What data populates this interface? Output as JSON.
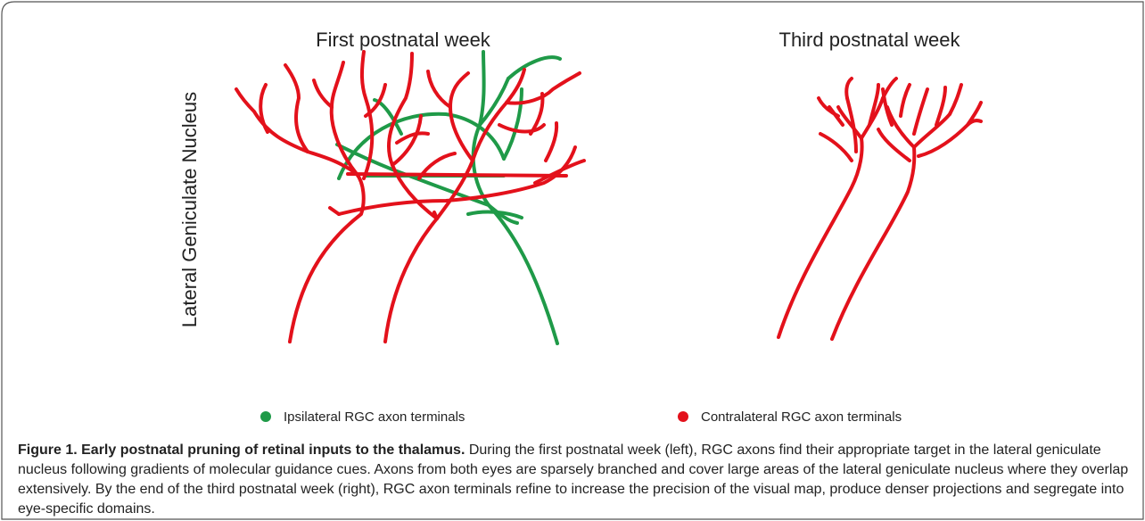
{
  "panels": [
    {
      "title": "First postnatal week"
    },
    {
      "title": "Third postnatal week"
    }
  ],
  "y_label": "Lateral Geniculate Nucleus",
  "legend": [
    {
      "label": "Ipsilateral RGC axon terminals",
      "color": "#1f9a48"
    },
    {
      "label": "Contralateral RGC axon terminals",
      "color": "#e3111b"
    }
  ],
  "caption": {
    "title": "Figure 1. Early postnatal pruning of retinal inputs to the thalamus.",
    "text": "During the first postnatal week (left), RGC axons find their appropriate target in the lateral geniculate nucleus following gradients of molecular guidance cues. Axons from both eyes are sparsely branched and cover large areas of the lateral geniculate nucleus where they overlap extensively. By the end of the third postnatal week (right), RGC axon terminals refine to increase the precision of the visual map, produce denser projections and segregate into eye-specific domains."
  }
}
